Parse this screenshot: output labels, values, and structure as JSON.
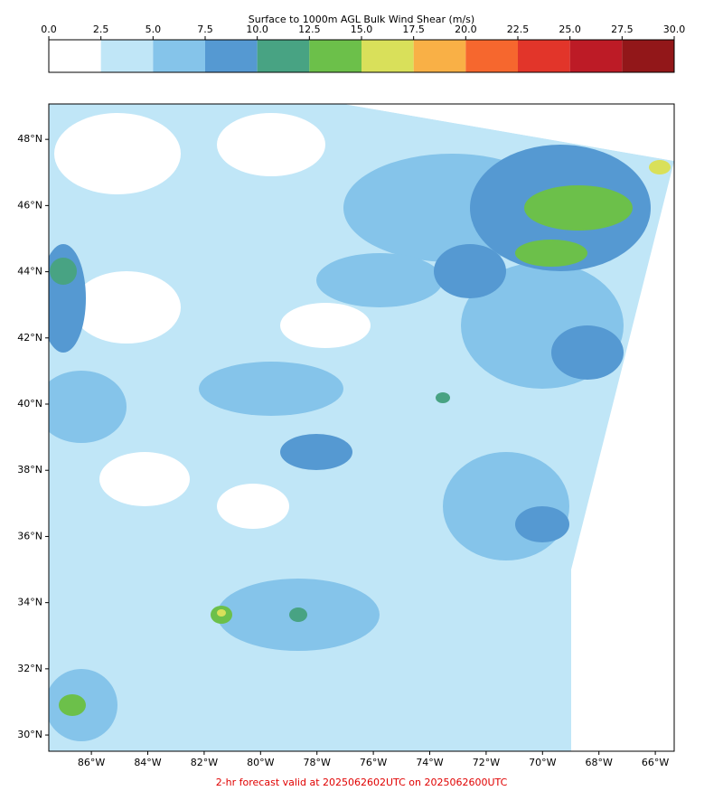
{
  "colorbar": {
    "title": "Surface to 1000m AGL Bulk Wind Shear (m/s)",
    "lim": [
      0,
      30
    ],
    "ticks": [
      {
        "value": 0,
        "label": "0.0"
      },
      {
        "value": 2.5,
        "label": "2.5"
      },
      {
        "value": 5,
        "label": "5.0"
      },
      {
        "value": 7.5,
        "label": "7.5"
      },
      {
        "value": 10,
        "label": "10.0"
      },
      {
        "value": 12.5,
        "label": "12.5"
      },
      {
        "value": 15,
        "label": "15.0"
      },
      {
        "value": 17.5,
        "label": "17.5"
      },
      {
        "value": 20,
        "label": "20.0"
      },
      {
        "value": 22.5,
        "label": "22.5"
      },
      {
        "value": 25,
        "label": "25.0"
      },
      {
        "value": 27.5,
        "label": "27.5"
      },
      {
        "value": 30,
        "label": "30.0"
      }
    ],
    "colors": [
      "#ffffff",
      "#c0e6f7",
      "#85c4ea",
      "#5599d2",
      "#48a383",
      "#6cc04a",
      "#d9e05a",
      "#f9b046",
      "#f6672e",
      "#e2352a",
      "#bd1b26",
      "#921719"
    ]
  },
  "map": {
    "lat_range": [
      29.51,
      49.07
    ],
    "lon_range": [
      -87.51,
      -65.33
    ],
    "lat_ticks": [
      {
        "value": 30,
        "label": "30°N"
      },
      {
        "value": 32,
        "label": "32°N"
      },
      {
        "value": 34,
        "label": "34°N"
      },
      {
        "value": 36,
        "label": "36°N"
      },
      {
        "value": 38,
        "label": "38°N"
      },
      {
        "value": 40,
        "label": "40°N"
      },
      {
        "value": 42,
        "label": "42°N"
      },
      {
        "value": 44,
        "label": "44°N"
      },
      {
        "value": 46,
        "label": "46°N"
      },
      {
        "value": 48,
        "label": "48°N"
      }
    ],
    "lon_ticks": [
      {
        "value": -86,
        "label": "86°W"
      },
      {
        "value": -84,
        "label": "84°W"
      },
      {
        "value": -82,
        "label": "82°W"
      },
      {
        "value": -80,
        "label": "80°W"
      },
      {
        "value": -78,
        "label": "78°W"
      },
      {
        "value": -76,
        "label": "76°W"
      },
      {
        "value": -74,
        "label": "74°W"
      },
      {
        "value": -72,
        "label": "72°W"
      },
      {
        "value": -70,
        "label": "70°W"
      },
      {
        "value": -68,
        "label": "68°W"
      },
      {
        "value": -66,
        "label": "66°W"
      }
    ]
  },
  "footer": "2-hr forecast valid at 2025062602UTC on 2025062600UTC"
}
